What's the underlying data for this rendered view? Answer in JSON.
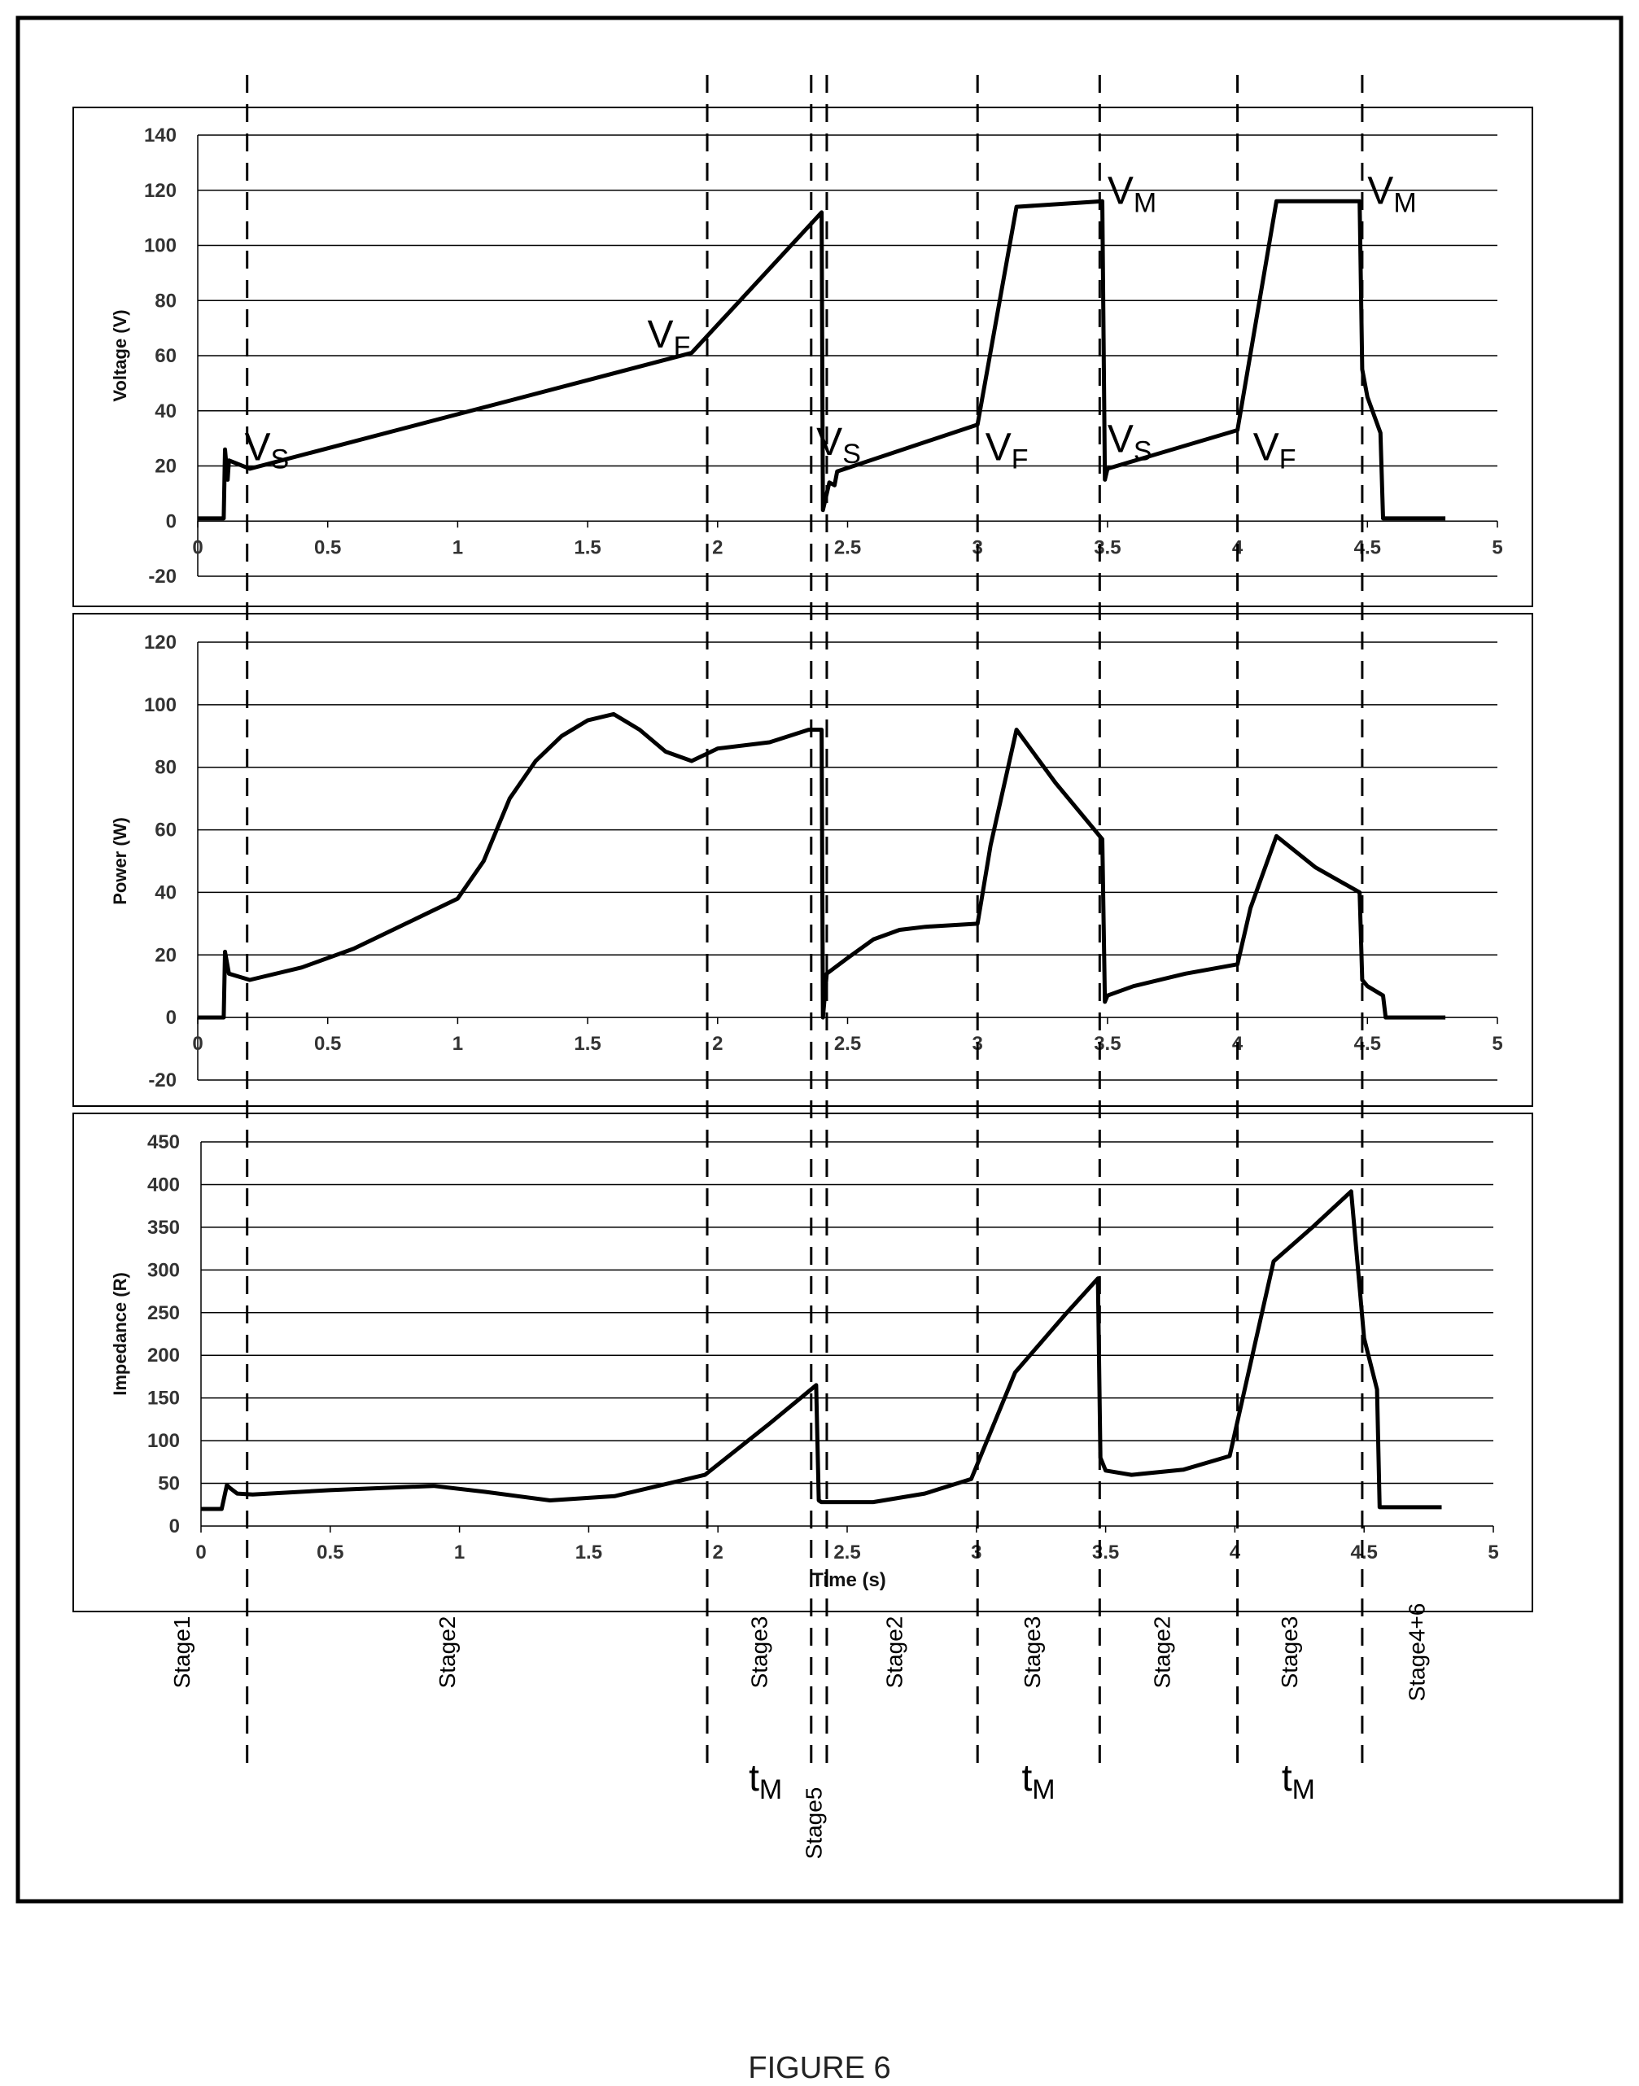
{
  "figure_label": "FIGURE 6",
  "chart_data": [
    {
      "type": "line",
      "ylabel": "Voltage (V)",
      "xlabel": "",
      "xlim": [
        0,
        5
      ],
      "ylim": [
        -20,
        140
      ],
      "x_ticks": [
        "0",
        "0.5",
        "1",
        "1.5",
        "2",
        "2.5",
        "3",
        "3.5",
        "4",
        "4.5",
        "5"
      ],
      "y_ticks": [
        "-20",
        "0",
        "20",
        "40",
        "60",
        "80",
        "100",
        "120",
        "140"
      ],
      "grid": true,
      "annotations": [
        {
          "main": "V",
          "sub": "S",
          "x": 0.18,
          "y": 22
        },
        {
          "main": "V",
          "sub": "F",
          "x": 1.73,
          "y": 63
        },
        {
          "main": "V",
          "sub": "S",
          "x": 2.38,
          "y": 24
        },
        {
          "main": "V",
          "sub": "F",
          "x": 3.03,
          "y": 22
        },
        {
          "main": "V",
          "sub": "M",
          "x": 3.5,
          "y": 115
        },
        {
          "main": "V",
          "sub": "S",
          "x": 3.5,
          "y": 25
        },
        {
          "main": "V",
          "sub": "F",
          "x": 4.06,
          "y": 22
        },
        {
          "main": "V",
          "sub": "M",
          "x": 4.5,
          "y": 115
        }
      ],
      "series": [
        {
          "x": [
            0,
            0.1,
            0.105,
            0.115,
            0.12,
            0.2,
            1.9,
            2.4,
            2.405,
            2.43,
            2.45,
            2.46,
            3.0,
            3.15,
            3.48,
            3.49,
            3.5,
            4.0,
            4.15,
            4.47,
            4.48,
            4.5,
            4.55,
            4.56,
            4.8
          ],
          "y": [
            1,
            1,
            26,
            15,
            22,
            19,
            61,
            112,
            4,
            14,
            13,
            18,
            35,
            114,
            116,
            15,
            19,
            33,
            116,
            116,
            55,
            45,
            32,
            1,
            1
          ]
        }
      ]
    },
    {
      "type": "line",
      "ylabel": "Power (W)",
      "xlabel": "",
      "xlim": [
        0,
        5
      ],
      "ylim": [
        -20,
        120
      ],
      "x_ticks": [
        "0",
        "0.5",
        "1",
        "1.5",
        "2",
        "2.5",
        "3",
        "3.5",
        "4",
        "4.5",
        "5"
      ],
      "y_ticks": [
        "-20",
        "0",
        "20",
        "40",
        "60",
        "80",
        "100",
        "120"
      ],
      "grid": true,
      "series": [
        {
          "x": [
            0,
            0.1,
            0.105,
            0.12,
            0.2,
            0.4,
            0.6,
            0.8,
            1.0,
            1.1,
            1.2,
            1.3,
            1.4,
            1.5,
            1.6,
            1.7,
            1.8,
            1.9,
            2.0,
            2.2,
            2.35,
            2.4,
            2.405,
            2.42,
            2.5,
            2.6,
            2.7,
            2.8,
            3.0,
            3.05,
            3.15,
            3.3,
            3.48,
            3.49,
            3.5,
            3.6,
            3.8,
            4.0,
            4.05,
            4.15,
            4.3,
            4.47,
            4.48,
            4.5,
            4.56,
            4.57,
            4.8
          ],
          "y": [
            0,
            0,
            21,
            14,
            12,
            16,
            22,
            30,
            38,
            50,
            70,
            82,
            90,
            95,
            97,
            92,
            85,
            82,
            86,
            88,
            92,
            92,
            0,
            14,
            19,
            25,
            28,
            29,
            30,
            55,
            92,
            75,
            57,
            5,
            7,
            10,
            14,
            17,
            35,
            58,
            48,
            40,
            12,
            10,
            7,
            0,
            0
          ]
        }
      ]
    },
    {
      "type": "line",
      "ylabel": "Impedance (R)",
      "xlabel": "Time (s)",
      "xlim": [
        0,
        5
      ],
      "ylim": [
        0,
        450
      ],
      "x_ticks": [
        "0",
        "0.5",
        "1",
        "1.5",
        "2",
        "2.5",
        "3",
        "3.5",
        "4",
        "4.5",
        "5"
      ],
      "y_ticks": [
        "0",
        "50",
        "100",
        "150",
        "200",
        "250",
        "300",
        "350",
        "400",
        "450"
      ],
      "grid": true,
      "series": [
        {
          "x": [
            0,
            0.08,
            0.1,
            0.11,
            0.14,
            0.2,
            0.5,
            0.9,
            1.1,
            1.35,
            1.6,
            1.95,
            2.2,
            2.38,
            2.39,
            2.4,
            2.6,
            2.8,
            2.98,
            3.15,
            3.35,
            3.47,
            3.48,
            3.5,
            3.6,
            3.8,
            3.98,
            4.15,
            4.3,
            4.45,
            4.5,
            4.55,
            4.56,
            4.8
          ],
          "y": [
            20,
            20,
            48,
            45,
            38,
            37,
            42,
            47,
            40,
            30,
            35,
            60,
            120,
            165,
            30,
            28,
            28,
            38,
            55,
            180,
            250,
            290,
            80,
            65,
            60,
            66,
            82,
            310,
            350,
            392,
            220,
            160,
            22,
            22
          ]
        }
      ]
    }
  ],
  "stages": [
    {
      "label": "Stage1",
      "x": 0.0
    },
    {
      "label": "Stage2",
      "x": 0.99
    },
    {
      "label": "Stage3",
      "x": 2.19
    },
    {
      "label": "Stage5",
      "x": 2.4
    },
    {
      "label": "Stage2",
      "x": 2.71
    },
    {
      "label": "Stage3",
      "x": 3.24
    },
    {
      "label": "Stage2",
      "x": 3.74
    },
    {
      "label": "Stage3",
      "x": 4.23
    },
    {
      "label": "Stage4+6",
      "x": 4.72
    }
  ],
  "tm_labels": [
    {
      "main": "t",
      "sub": "M",
      "x": 2.12
    },
    {
      "main": "t",
      "sub": "M",
      "x": 3.17
    },
    {
      "main": "t",
      "sub": "M",
      "x": 4.17
    }
  ],
  "divider_times": [
    0.19,
    1.96,
    2.36,
    2.42,
    3.0,
    3.47,
    4.0,
    4.48
  ]
}
